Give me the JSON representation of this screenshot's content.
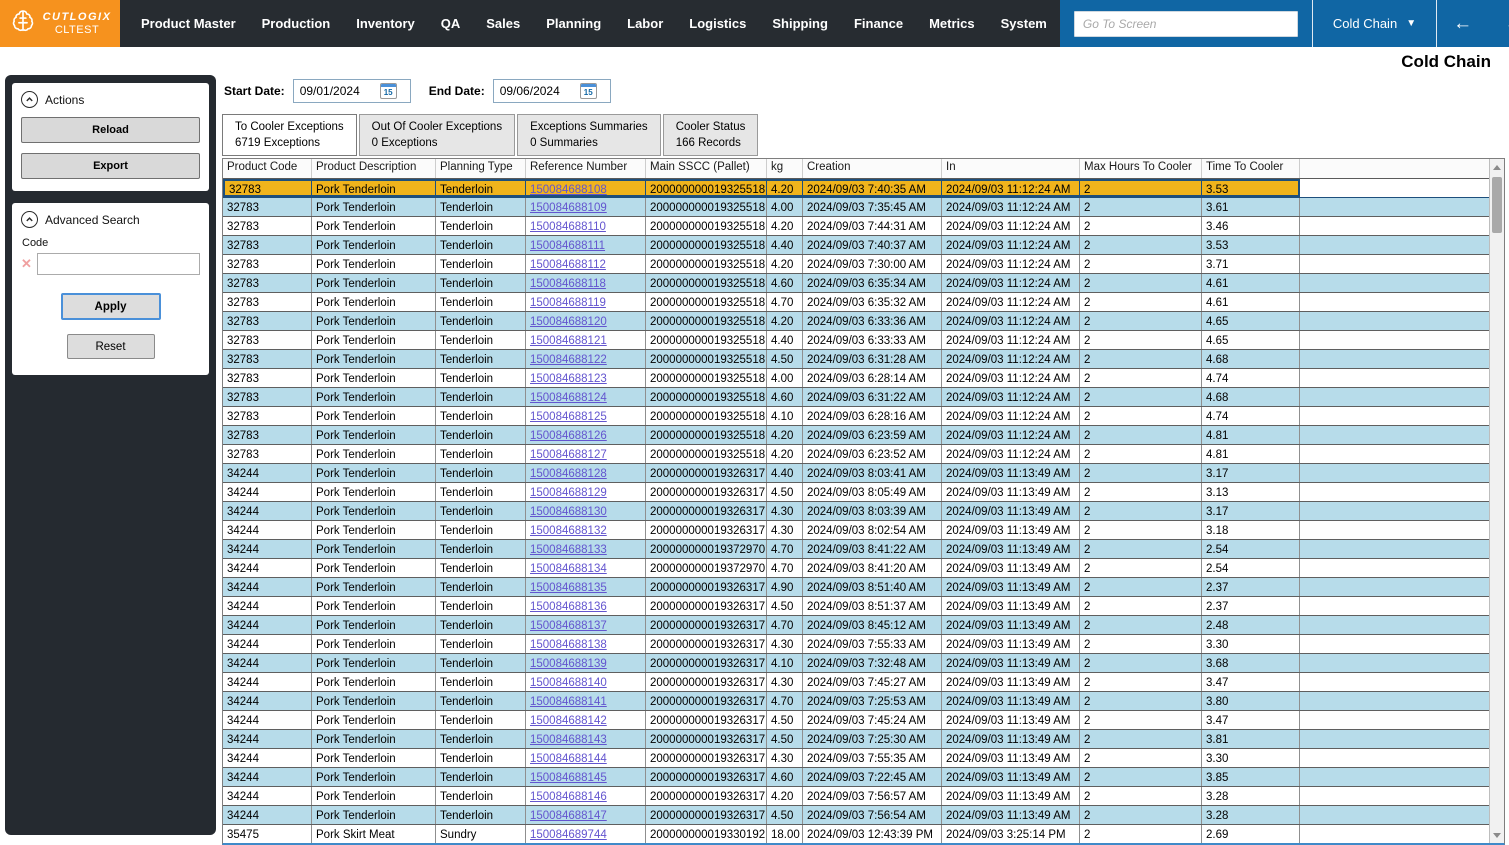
{
  "brand": {
    "name": "CUTLOGIX",
    "environment": "CLTEST"
  },
  "nav": {
    "items": [
      "Product Master",
      "Production",
      "Inventory",
      "QA",
      "Sales",
      "Planning",
      "Labor",
      "Logistics",
      "Shipping",
      "Finance",
      "Metrics",
      "System"
    ],
    "go_to_placeholder": "Go To Screen",
    "screen_selector": "Cold Chain",
    "back_arrow": "←",
    "forward_arrow": "→",
    "close": "✕",
    "favorite": "☆"
  },
  "page": {
    "title": "Cold Chain"
  },
  "sidebar": {
    "actions": {
      "title": "Actions",
      "reload_label": "Reload",
      "export_label": "Export"
    },
    "advanced_search": {
      "title": "Advanced Search",
      "code_label": "Code",
      "code_value": "",
      "clear_icon": "✕",
      "apply_label": "Apply",
      "reset_label": "Reset"
    }
  },
  "filters": {
    "start_label": "Start Date:",
    "start_value": "09/01/2024",
    "end_label": "End Date:",
    "end_value": "09/06/2024",
    "calendar_day": "15"
  },
  "tabs": [
    {
      "title": "To Cooler Exceptions",
      "subtitle": "6719 Exceptions",
      "active": true
    },
    {
      "title": "Out Of Cooler Exceptions",
      "subtitle": "0 Exceptions",
      "active": false
    },
    {
      "title": "Exceptions Summaries",
      "subtitle": "0 Summaries",
      "active": false
    },
    {
      "title": "Cooler Status",
      "subtitle": "166 Records",
      "active": false
    }
  ],
  "table": {
    "columns": [
      "Product Code",
      "Product Description",
      "Planning Type",
      "Reference Number",
      "Main SSCC (Pallet)",
      "kg",
      "Creation",
      "In",
      "Max Hours To Cooler",
      "Time To Cooler"
    ],
    "link_column_index": 3,
    "selected_row": 0,
    "selected_color": "#f0b41c",
    "alt_row_color": "#b7dcea",
    "rows": [
      [
        "32783",
        "Pork Tenderloin",
        "Tenderloin",
        "150084688108",
        "200000000019325518",
        "4.20",
        "2024/09/03 7:40:35 AM",
        "2024/09/03 11:12:24 AM",
        "2",
        "3.53"
      ],
      [
        "32783",
        "Pork Tenderloin",
        "Tenderloin",
        "150084688109",
        "200000000019325518",
        "4.00",
        "2024/09/03 7:35:45 AM",
        "2024/09/03 11:12:24 AM",
        "2",
        "3.61"
      ],
      [
        "32783",
        "Pork Tenderloin",
        "Tenderloin",
        "150084688110",
        "200000000019325518",
        "4.20",
        "2024/09/03 7:44:31 AM",
        "2024/09/03 11:12:24 AM",
        "2",
        "3.46"
      ],
      [
        "32783",
        "Pork Tenderloin",
        "Tenderloin",
        "150084688111",
        "200000000019325518",
        "4.40",
        "2024/09/03 7:40:37 AM",
        "2024/09/03 11:12:24 AM",
        "2",
        "3.53"
      ],
      [
        "32783",
        "Pork Tenderloin",
        "Tenderloin",
        "150084688112",
        "200000000019325518",
        "4.20",
        "2024/09/03 7:30:00 AM",
        "2024/09/03 11:12:24 AM",
        "2",
        "3.71"
      ],
      [
        "32783",
        "Pork Tenderloin",
        "Tenderloin",
        "150084688118",
        "200000000019325518",
        "4.60",
        "2024/09/03 6:35:34 AM",
        "2024/09/03 11:12:24 AM",
        "2",
        "4.61"
      ],
      [
        "32783",
        "Pork Tenderloin",
        "Tenderloin",
        "150084688119",
        "200000000019325518",
        "4.70",
        "2024/09/03 6:35:32 AM",
        "2024/09/03 11:12:24 AM",
        "2",
        "4.61"
      ],
      [
        "32783",
        "Pork Tenderloin",
        "Tenderloin",
        "150084688120",
        "200000000019325518",
        "4.20",
        "2024/09/03 6:33:36 AM",
        "2024/09/03 11:12:24 AM",
        "2",
        "4.65"
      ],
      [
        "32783",
        "Pork Tenderloin",
        "Tenderloin",
        "150084688121",
        "200000000019325518",
        "4.40",
        "2024/09/03 6:33:33 AM",
        "2024/09/03 11:12:24 AM",
        "2",
        "4.65"
      ],
      [
        "32783",
        "Pork Tenderloin",
        "Tenderloin",
        "150084688122",
        "200000000019325518",
        "4.50",
        "2024/09/03 6:31:28 AM",
        "2024/09/03 11:12:24 AM",
        "2",
        "4.68"
      ],
      [
        "32783",
        "Pork Tenderloin",
        "Tenderloin",
        "150084688123",
        "200000000019325518",
        "4.00",
        "2024/09/03 6:28:14 AM",
        "2024/09/03 11:12:24 AM",
        "2",
        "4.74"
      ],
      [
        "32783",
        "Pork Tenderloin",
        "Tenderloin",
        "150084688124",
        "200000000019325518",
        "4.60",
        "2024/09/03 6:31:22 AM",
        "2024/09/03 11:12:24 AM",
        "2",
        "4.68"
      ],
      [
        "32783",
        "Pork Tenderloin",
        "Tenderloin",
        "150084688125",
        "200000000019325518",
        "4.10",
        "2024/09/03 6:28:16 AM",
        "2024/09/03 11:12:24 AM",
        "2",
        "4.74"
      ],
      [
        "32783",
        "Pork Tenderloin",
        "Tenderloin",
        "150084688126",
        "200000000019325518",
        "4.20",
        "2024/09/03 6:23:59 AM",
        "2024/09/03 11:12:24 AM",
        "2",
        "4.81"
      ],
      [
        "32783",
        "Pork Tenderloin",
        "Tenderloin",
        "150084688127",
        "200000000019325518",
        "4.20",
        "2024/09/03 6:23:52 AM",
        "2024/09/03 11:12:24 AM",
        "2",
        "4.81"
      ],
      [
        "34244",
        "Pork Tenderloin",
        "Tenderloin",
        "150084688128",
        "200000000019326317",
        "4.40",
        "2024/09/03 8:03:41 AM",
        "2024/09/03 11:13:49 AM",
        "2",
        "3.17"
      ],
      [
        "34244",
        "Pork Tenderloin",
        "Tenderloin",
        "150084688129",
        "200000000019326317",
        "4.50",
        "2024/09/03 8:05:49 AM",
        "2024/09/03 11:13:49 AM",
        "2",
        "3.13"
      ],
      [
        "34244",
        "Pork Tenderloin",
        "Tenderloin",
        "150084688130",
        "200000000019326317",
        "4.30",
        "2024/09/03 8:03:39 AM",
        "2024/09/03 11:13:49 AM",
        "2",
        "3.17"
      ],
      [
        "34244",
        "Pork Tenderloin",
        "Tenderloin",
        "150084688132",
        "200000000019326317",
        "4.30",
        "2024/09/03 8:02:54 AM",
        "2024/09/03 11:13:49 AM",
        "2",
        "3.18"
      ],
      [
        "34244",
        "Pork Tenderloin",
        "Tenderloin",
        "150084688133",
        "200000000019372970",
        "4.70",
        "2024/09/03 8:41:22 AM",
        "2024/09/03 11:13:49 AM",
        "2",
        "2.54"
      ],
      [
        "34244",
        "Pork Tenderloin",
        "Tenderloin",
        "150084688134",
        "200000000019372970",
        "4.70",
        "2024/09/03 8:41:20 AM",
        "2024/09/03 11:13:49 AM",
        "2",
        "2.54"
      ],
      [
        "34244",
        "Pork Tenderloin",
        "Tenderloin",
        "150084688135",
        "200000000019326317",
        "4.90",
        "2024/09/03 8:51:40 AM",
        "2024/09/03 11:13:49 AM",
        "2",
        "2.37"
      ],
      [
        "34244",
        "Pork Tenderloin",
        "Tenderloin",
        "150084688136",
        "200000000019326317",
        "4.50",
        "2024/09/03 8:51:37 AM",
        "2024/09/03 11:13:49 AM",
        "2",
        "2.37"
      ],
      [
        "34244",
        "Pork Tenderloin",
        "Tenderloin",
        "150084688137",
        "200000000019326317",
        "4.70",
        "2024/09/03 8:45:12 AM",
        "2024/09/03 11:13:49 AM",
        "2",
        "2.48"
      ],
      [
        "34244",
        "Pork Tenderloin",
        "Tenderloin",
        "150084688138",
        "200000000019326317",
        "4.30",
        "2024/09/03 7:55:33 AM",
        "2024/09/03 11:13:49 AM",
        "2",
        "3.30"
      ],
      [
        "34244",
        "Pork Tenderloin",
        "Tenderloin",
        "150084688139",
        "200000000019326317",
        "4.10",
        "2024/09/03 7:32:48 AM",
        "2024/09/03 11:13:49 AM",
        "2",
        "3.68"
      ],
      [
        "34244",
        "Pork Tenderloin",
        "Tenderloin",
        "150084688140",
        "200000000019326317",
        "4.30",
        "2024/09/03 7:45:27 AM",
        "2024/09/03 11:13:49 AM",
        "2",
        "3.47"
      ],
      [
        "34244",
        "Pork Tenderloin",
        "Tenderloin",
        "150084688141",
        "200000000019326317",
        "4.70",
        "2024/09/03 7:25:53 AM",
        "2024/09/03 11:13:49 AM",
        "2",
        "3.80"
      ],
      [
        "34244",
        "Pork Tenderloin",
        "Tenderloin",
        "150084688142",
        "200000000019326317",
        "4.50",
        "2024/09/03 7:45:24 AM",
        "2024/09/03 11:13:49 AM",
        "2",
        "3.47"
      ],
      [
        "34244",
        "Pork Tenderloin",
        "Tenderloin",
        "150084688143",
        "200000000019326317",
        "4.50",
        "2024/09/03 7:25:30 AM",
        "2024/09/03 11:13:49 AM",
        "2",
        "3.81"
      ],
      [
        "34244",
        "Pork Tenderloin",
        "Tenderloin",
        "150084688144",
        "200000000019326317",
        "4.30",
        "2024/09/03 7:55:35 AM",
        "2024/09/03 11:13:49 AM",
        "2",
        "3.30"
      ],
      [
        "34244",
        "Pork Tenderloin",
        "Tenderloin",
        "150084688145",
        "200000000019326317",
        "4.60",
        "2024/09/03 7:22:45 AM",
        "2024/09/03 11:13:49 AM",
        "2",
        "3.85"
      ],
      [
        "34244",
        "Pork Tenderloin",
        "Tenderloin",
        "150084688146",
        "200000000019326317",
        "4.20",
        "2024/09/03 7:56:57 AM",
        "2024/09/03 11:13:49 AM",
        "2",
        "3.28"
      ],
      [
        "34244",
        "Pork Tenderloin",
        "Tenderloin",
        "150084688147",
        "200000000019326317",
        "4.50",
        "2024/09/03 7:56:54 AM",
        "2024/09/03 11:13:49 AM",
        "2",
        "3.28"
      ],
      [
        "35475",
        "Pork Skirt Meat",
        "Sundry",
        "150084689744",
        "200000000019330192",
        "18.00",
        "2024/09/03 12:43:39 PM",
        "2024/09/03 3:25:14 PM",
        "2",
        "2.69"
      ]
    ]
  },
  "colors": {
    "brand_orange": "#f6921e",
    "topbar_dark": "#272c31",
    "accent_blue": "#1066a4",
    "selected_row": "#f0b41c",
    "alt_row": "#b7dcea",
    "link": "#6355cf"
  }
}
